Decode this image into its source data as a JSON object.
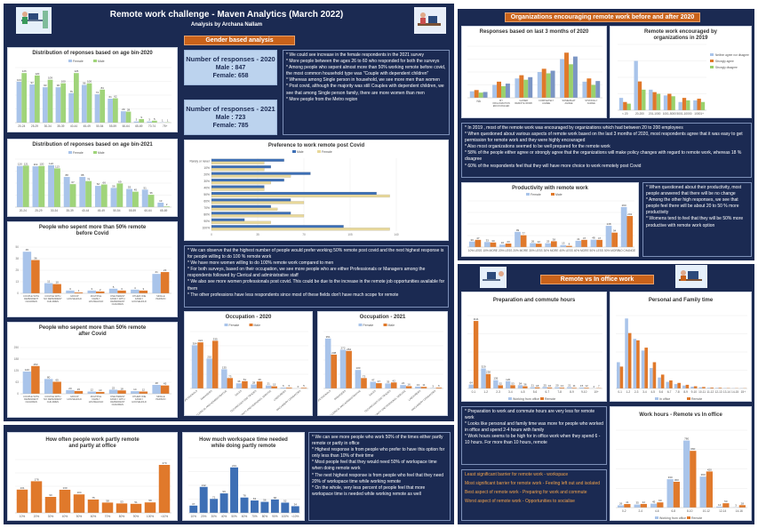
{
  "header": {
    "title": "Remote work challenge - Maven Analytics (March 2022)",
    "subtitle": "Analysis by Archana Nallam",
    "gender_banner": "Gender based analysis",
    "right_banner": "Organizations encouraging remote work before and after 2020",
    "remote_banner": "Remote vs In office work"
  },
  "colors": {
    "female": "#9ab8e0",
    "male": "#8fce6a",
    "male2": "#e0792b",
    "navy": "#1b2a52",
    "orange": "#c9621a"
  },
  "stats": {
    "r2020_title": "Number of responses - 2020",
    "r2020_male": "Male : 847",
    "r2020_female": "Female: 658",
    "r2021_title": "Number of responses - 2021",
    "r2021_male": "Male : 723",
    "r2021_female": "Female: 785"
  },
  "notes": {
    "n1": [
      "* We could see increase in the female respondents in the 2021 survey",
      "* More people between the ages 26 to 60 who responded for both the surveys",
      "* Among people who sepent almost more than 50% working remote before covid, the most common household type was \"Couple with dependent children\"",
      "* Whereas among Single person in household, we see more men than women",
      "* Post covid, although the majority was still Couples with dependent children, we see that among Single person family, there are more women than men",
      "* More people from the Metro region"
    ],
    "n2": [
      "* We can observe that the highest number of people would prefer working 50% remote post covid and the next highest response is for people willing to do 100 % remote work",
      "* We have more women willing to do 100% remote work compared to men",
      "* For both surveys, based on their occupation, we see more people who are either Professionals or Managers among the respondents followed by Clerical and administrative staff",
      "* We also see more women professionals post covid. This could be due to the increase in the remote job opportunities available for them",
      "* The other professions have less respondents since most of these fields don't have much scope for remote"
    ],
    "n3": [
      "* We can see more people who work 50% of the times either partly remote or partly in office",
      "* Highest response is from people who prefer to have this option for only less than 10% of their time",
      "* Most people feel that they would need 50% of workspace time when doing remote work",
      "* The next highest response is from people who feel that they need 20% of workspace time while working remote",
      "* On the whole, very less percent of people feel that more workspace time is needed while working remote as well"
    ],
    "n4": [
      "* In 2019 , most of the remote work was encouraged by organizations which had between 20 to 200 employees",
      "* When questioned about various aspects of remote work based on the last 3 months of 2020, most respondents agree that it was easy to get permission for remote work and they were highly encouraged",
      "* Also most organizations seemed to be well prepared for the remote work",
      "* 58% of the people either agree or strongly agree that the organizations will make policy changes with regard to remote work, whereas 18 % disagree",
      "* 60% of the respondents feel that they will have more choice to work remotely post Covid"
    ],
    "n5": [
      "* When questioned about their productivity, most people answered that there will be no change",
      "* Among the other high responses, we see that people feel there will be about 20 to 50 % more productivity",
      "* Womens tend to feel that they will be 50% more productive with remote work option"
    ],
    "n6": [
      "* Preparation to work and commute hours are very less for remote work",
      "* Looks like personal and family time was more for people who worked in office and spend 2-4 hours with family",
      "* Work hours seems to be high for in office work when they spend 6 - 10 hours. For more than 10 hours, remote"
    ],
    "n7": [
      "Least significant barrier for remote work - workspace",
      "Most significant barrier for remote work - Feeling left out and isolated",
      "Best aspect of remote work - Preparing for work and commute",
      "Worst aspect of remote work - Opportunities to socialise"
    ]
  },
  "chart_data": [
    {
      "id": "age2020",
      "type": "bar",
      "title": "Distribution of reponses based on age bin-2020",
      "legend": [
        "Female",
        "Male"
      ],
      "categories": [
        "20-24",
        "25-29",
        "30-34",
        "35-39",
        "40-44",
        "45-49",
        "50-54",
        "55-59",
        "60-64",
        "65-69",
        "70-74",
        "75+"
      ],
      "series": [
        {
          "name": "Female",
          "values": [
            104,
            97,
            90,
            90,
            75,
            96,
            72,
            61,
            29,
            3,
            3,
            1
          ]
        },
        {
          "name": "Male",
          "values": [
            126,
            120,
            109,
            100,
            126,
            100,
            84,
            62,
            28,
            9,
            5,
            1
          ]
        }
      ],
      "ylim": [
        0,
        140
      ]
    },
    {
      "id": "age2021",
      "type": "bar",
      "title": "Distribution of reponses based on age bin-2021",
      "legend": [
        "Female",
        "Male"
      ],
      "categories": [
        "20-24",
        "25-29",
        "30-34",
        "35-39",
        "40-44",
        "45-49",
        "50-54",
        "55-59",
        "60-64",
        "65-69"
      ],
      "series": [
        {
          "name": "Female",
          "values": [
            120,
            119,
            122,
            88,
            88,
            62,
            56,
            53,
            51,
            13
          ]
        },
        {
          "name": "Male",
          "values": [
            121,
            120,
            113,
            67,
            76,
            66,
            69,
            45,
            36,
            2
          ]
        }
      ],
      "ylim": [
        0,
        140
      ]
    },
    {
      "id": "hh_before",
      "type": "bar",
      "title": "People who sepent more than 50% remote before Covid",
      "legend": [],
      "categories": [
        "COUPLE WITH DEPENDENT CHILDREN",
        "COUPLE WITH NO DEPENDENT CHILDREN",
        "GROUP HOUSEHOLD",
        "MULTIPLE FAMILY HOUSEHOLD",
        "ONE PARENT FAMILY WITH DEPENDENT CHILDREN",
        "OTHER ONE FAMILY HOUSEHOLD",
        "SINGLE PERSON"
      ],
      "series": [
        {
          "name": "Female",
          "values": [
            45,
            11,
            3,
            3,
            5,
            4,
            21
          ]
        },
        {
          "name": "Male",
          "values": [
            36,
            10,
            1,
            2,
            3,
            3,
            23
          ]
        }
      ],
      "ylim": [
        0,
        50
      ]
    },
    {
      "id": "hh_after",
      "type": "bar",
      "title": "People who sepent more than 50% remote after Covid",
      "legend": [],
      "categories": [
        "COUPLE WITH DEPENDENT CHILDREN",
        "COUPLE WITH NO DEPENDENT CHILDREN",
        "GROUP HOUSEHOLD",
        "MULTIPLE FAMILY HOUSEHOLD",
        "ONE PARENT FAMILY WITH DEPENDENT CHILDREN",
        "OTHER ONE FAMILY HOUSEHOLD",
        "SINGLE PERSON"
      ],
      "series": [
        {
          "name": "Female",
          "values": [
            120,
            80,
            20,
            12,
            22,
            14,
            48
          ]
        },
        {
          "name": "Male",
          "values": [
            150,
            65,
            15,
            10,
            18,
            12,
            45
          ]
        }
      ],
      "ylim": [
        0,
        250
      ]
    },
    {
      "id": "preference",
      "type": "bar",
      "title": "Preference to work remote post Covid",
      "legend": [
        "Male",
        "Female"
      ],
      "categories": [
        "Rarely or never",
        "10%",
        "20%",
        "30%",
        "40%",
        "50%",
        "60%",
        "70%",
        "80%",
        "90%",
        "100%"
      ],
      "series": [
        {
          "name": "Male",
          "values": [
            55,
            45,
            75,
            55,
            40,
            125,
            60,
            45,
            60,
            25,
            100
          ]
        },
        {
          "name": "Female",
          "values": [
            40,
            40,
            60,
            45,
            40,
            135,
            70,
            50,
            70,
            45,
            135
          ]
        }
      ],
      "ylim": [
        0,
        140
      ]
    },
    {
      "id": "occ2020",
      "type": "bar",
      "title": "Occupation - 2020",
      "legend": [
        "Female",
        "Male"
      ],
      "categories": [
        "PROFESSIONALS",
        "MANAGERS",
        "CLERICAL AND ADMINISTRATIVE",
        "SALES",
        "TECHNICIANS AND TRADES",
        "COMMUNITY AND PERSONAL SERVICE",
        "LABOURERS",
        "MACHINERY OPERATORS"
      ],
      "series": [
        {
          "name": "Female",
          "values": [
            304,
            210,
            135,
            36,
            28,
            21,
            6,
            0
          ]
        },
        {
          "name": "Male",
          "values": [
            324,
            335,
            73,
            51,
            49,
            15,
            6,
            5
          ]
        }
      ],
      "ylim": [
        0,
        400
      ]
    },
    {
      "id": "occ2021",
      "type": "bar",
      "title": "Occupation - 2021",
      "legend": [
        "Female",
        "Male"
      ],
      "categories": [
        "PROFESSIONALS",
        "MANAGERS",
        "CLERICAL AND ADMINISTRATIVE",
        "SALES",
        "TECHNICIANS AND TRADES",
        "COMMUNITY AND PERSONAL SERVICE",
        "LABOURERS",
        "MACHINERY OPERATORS"
      ],
      "series": [
        {
          "name": "Female",
          "values": [
            351,
            272,
            130,
            47,
            35,
            24,
            13,
            3
          ]
        },
        {
          "name": "Male",
          "values": [
            238,
            264,
            73,
            37,
            42,
            16,
            11,
            6
          ]
        }
      ],
      "ylim": [
        0,
        400
      ]
    },
    {
      "id": "partly",
      "type": "bar",
      "title": "How often people work partly remote and partly at office",
      "legend": [],
      "categories": [
        "10%",
        "20%",
        "30%",
        "40%",
        "50%",
        "60%",
        "70%",
        "80%",
        "90%",
        "100%",
        "<10%"
      ],
      "series": [
        {
          "name": "",
          "values": [
            131,
            178,
            90,
            130,
            104,
            75,
            58,
            53,
            51,
            59,
            270
          ]
        }
      ],
      "ylim": [
        0,
        300
      ]
    },
    {
      "id": "workspace",
      "type": "bar",
      "title": "How much workspace time needed while doing partly remote",
      "legend": [],
      "categories": [
        "10%",
        "20%",
        "30%",
        "40%",
        "50%",
        "60%",
        "70%",
        "80%",
        "90%",
        "100%",
        "<10%"
      ],
      "series": [
        {
          "name": "",
          "values": [
            37,
            132,
            71,
            99,
            231,
            78,
            63,
            56,
            68,
            52,
            34
          ]
        }
      ],
      "ylim": [
        0,
        280
      ]
    },
    {
      "id": "last3",
      "type": "bar",
      "title": "Responses based on last 3 months of 2020",
      "legend": [],
      "categories": [
        "NA",
        "MY ORGANIZATION ENCOURAGED",
        "GAINED REMOTE WORK",
        "COMPLETELY AGREE",
        "SOMEWHAT AGREE",
        "STRONGLY AGREE"
      ],
      "series": [
        {
          "name": "Easy to obtain",
          "values": [
            10,
            20,
            30,
            40,
            60,
            25
          ]
        },
        {
          "name": "Well prepared",
          "values": [
            12,
            25,
            35,
            45,
            70,
            30
          ]
        },
        {
          "name": "Policy changes",
          "values": [
            8,
            18,
            28,
            38,
            52,
            20
          ]
        },
        {
          "name": "More choice",
          "values": [
            9,
            22,
            32,
            42,
            64,
            26
          ]
        }
      ],
      "ylim": [
        0,
        80
      ]
    },
    {
      "id": "enc2019",
      "type": "bar",
      "title": "Remote work encouraged by organizations in 2019",
      "legend": [
        "Neither agree nor disagree",
        "Strongly agree",
        "Strongly disagree"
      ],
      "categories": [
        "< 20",
        "20-200",
        "201-1000",
        "1001-5000",
        "5001-10000",
        "10001+"
      ],
      "series": [
        {
          "name": "Neither agree nor disagree",
          "values": [
            15,
            60,
            25,
            18,
            10,
            12
          ]
        },
        {
          "name": "Strongly agree",
          "values": [
            10,
            35,
            22,
            20,
            15,
            14
          ]
        },
        {
          "name": "Strongly disagree",
          "values": [
            8,
            25,
            20,
            17,
            12,
            10
          ]
        }
      ],
      "ylim": [
        0,
        80
      ]
    },
    {
      "id": "productivity",
      "type": "bar",
      "title": "Productivity with remote work",
      "legend": [
        "Female",
        "Male"
      ],
      "categories": [
        "10% LESS",
        "10% MORE",
        "20% LESS",
        "20% MORE",
        "30% LESS",
        "30% MORE",
        "40% LESS",
        "40% MORE",
        "50% LESS",
        "50% MORE",
        "NO CHANGE"
      ],
      "series": [
        {
          "name": "Female",
          "values": [
            36,
            33,
            16,
            99,
            26,
            25,
            13,
            41,
            48,
            138,
            260
          ]
        },
        {
          "name": "Male",
          "values": [
            47,
            30,
            23,
            77,
            22,
            38,
            8,
            47,
            47,
            94,
            202
          ]
        }
      ],
      "ylim": [
        0,
        300
      ]
    },
    {
      "id": "prep",
      "type": "bar",
      "title": "Preparation and commute hours",
      "legend": [
        "Working from office",
        "Remote"
      ],
      "categories": [
        "0-1",
        "1-2",
        "2-3",
        "3-4",
        "4-5",
        "5-6",
        "6-7",
        "7-8",
        "8-9",
        "9-10",
        "10+"
      ],
      "series": [
        {
          "name": "Working from office",
          "values": [
            64,
            329,
            136,
            120,
            54,
            21,
            25,
            20,
            21,
            15,
            2
          ]
        },
        {
          "name": "Remote",
          "values": [
            1111,
            238,
            52,
            53,
            36,
            18,
            16,
            14,
            11,
            12,
            7
          ]
        }
      ],
      "ylim": [
        0,
        1200
      ]
    },
    {
      "id": "personal",
      "type": "bar",
      "title": "Personal and Family time",
      "legend": [
        "In office",
        "Remote"
      ],
      "categories": [
        "0-1",
        "1-2",
        "2-3",
        "3-4",
        "4-5",
        "5-6",
        "6-7",
        "7-8",
        "8-9",
        "9-10",
        "10-11",
        "11-12",
        "12-13",
        "13-14",
        "14-15",
        "15+"
      ],
      "series": [
        {
          "name": "In office",
          "values": [
            180,
            480,
            340,
            260,
            140,
            75,
            45,
            30,
            20,
            12,
            8,
            5,
            4,
            3,
            2,
            2
          ]
        },
        {
          "name": "Remote",
          "values": [
            150,
            380,
            330,
            280,
            180,
            95,
            55,
            38,
            25,
            15,
            10,
            6,
            5,
            3,
            2,
            2
          ]
        }
      ],
      "ylim": [
        0,
        500
      ]
    },
    {
      "id": "workhours",
      "type": "bar",
      "title": "Work hours - Remote vs In office",
      "legend": [
        "Working from office",
        "Remote"
      ],
      "categories": [
        "0-2",
        "2-4",
        "4-6",
        "6-8",
        "8-10",
        "10-12",
        "12-14",
        "14-16"
      ],
      "series": [
        {
          "name": "Working from office",
          "values": [
            26,
            35,
            45,
            330,
            780,
            360,
            12,
            3
          ]
        },
        {
          "name": "Remote",
          "values": [
            41,
            42,
            60,
            300,
            660,
            420,
            50,
            28
          ]
        }
      ],
      "ylim": [
        0,
        900
      ]
    }
  ]
}
